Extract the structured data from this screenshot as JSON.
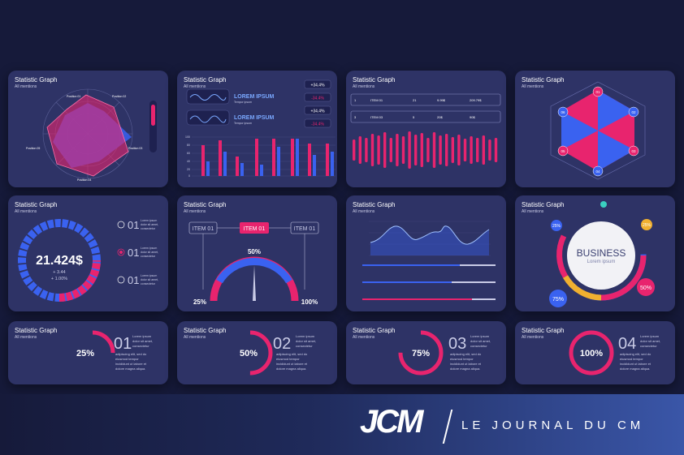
{
  "panel_title": "Statistic Graph",
  "panel_subtitle": "All mentions",
  "radar": {
    "labels": [
      "Position 01",
      "Position 02",
      "Position 03",
      "Position 04",
      "Position 05"
    ]
  },
  "panel2": {
    "lorem_title": "LOREM IPSUM",
    "lorem_sub": "Tempor ipsum",
    "badges": [
      "+34.4%",
      "-34.4%",
      "+34.4%",
      "-34.4%"
    ],
    "axis": [
      "100",
      "80",
      "60",
      "40",
      "20",
      "0"
    ]
  },
  "table": {
    "rows": [
      [
        "1",
        "ITEM 01",
        "21",
        "9.99$",
        "209.79$"
      ],
      [
        "3",
        "ITEM 03",
        "5",
        "20$",
        "90$"
      ]
    ]
  },
  "hexagon": {
    "labels": [
      "01",
      "02",
      "03",
      "04",
      "05",
      "06"
    ]
  },
  "donut": {
    "value": "21.424$",
    "delta1": "+ 3.44",
    "delta2": "+ 1.00%",
    "options": [
      "01",
      "01",
      "01"
    ],
    "option_lines": [
      "Lorem ipsum",
      "dolor sit amet,",
      "consectetur"
    ]
  },
  "gauge": {
    "items": [
      "ITEM 01",
      "ITEM 01",
      "ITEM 01"
    ],
    "pct_top": "50%",
    "pct_left": "25%",
    "pct_right": "100%"
  },
  "business": {
    "title": "BUSINESS",
    "sub": "Lorem   ipsum",
    "pcts": [
      "25%",
      "25%",
      "50%",
      "75%"
    ]
  },
  "progress_cards": [
    {
      "pct": "25%",
      "num": "01",
      "value": 0.25
    },
    {
      "pct": "50%",
      "num": "02",
      "value": 0.5
    },
    {
      "pct": "75%",
      "num": "03",
      "value": 0.75
    },
    {
      "pct": "100%",
      "num": "04",
      "value": 1.0
    }
  ],
  "lorem_lines": [
    "Lorem ipsum",
    "dolor sit amet,",
    "consectetur",
    "adipiscing elit, sed do",
    "eiusmod tempor",
    "incididunt ut labore et",
    "dolore magna aliqua."
  ],
  "footer": {
    "logo": "JCM",
    "tagline": "LE JOURNAL DU CM"
  },
  "colors": {
    "bg": "#161a3a",
    "panel": "#2e3366",
    "pink": "#e8246e",
    "blue": "#3a62f0"
  }
}
